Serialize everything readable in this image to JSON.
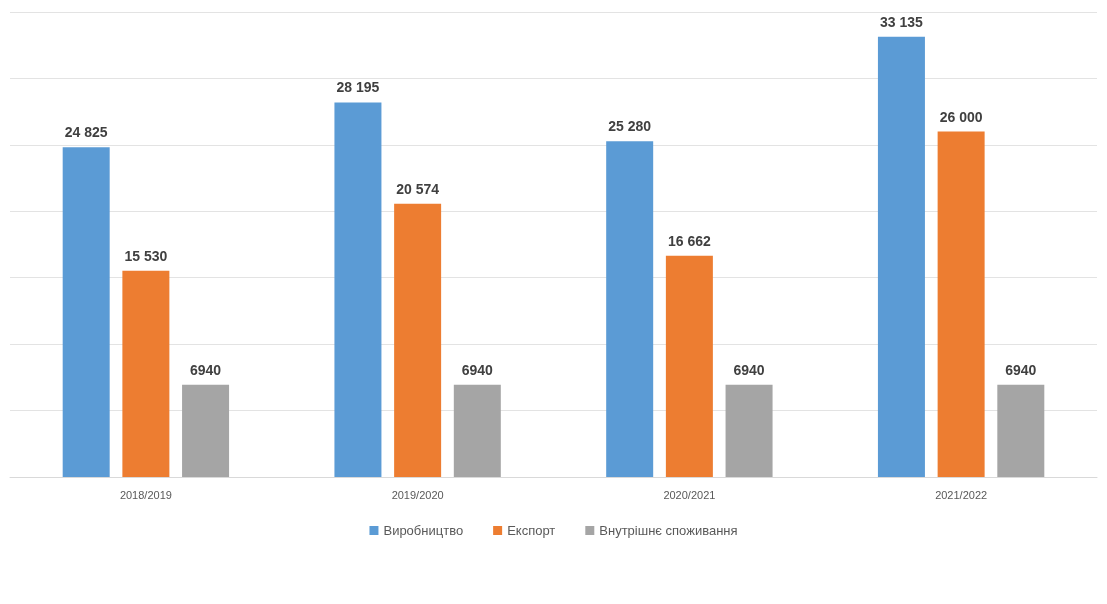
{
  "chart_data": {
    "type": "bar",
    "categories": [
      "2018/2019",
      "2019/2020",
      "2020/2021",
      "2021/2022"
    ],
    "series": [
      {
        "name": "Виробництво",
        "color": "#5b9bd5",
        "values": [
          24825,
          28195,
          25280,
          33135
        ],
        "value_labels": [
          "24 825",
          "28 195",
          "25 280",
          "33 135"
        ]
      },
      {
        "name": "Експорт",
        "color": "#ed7d31",
        "values": [
          15530,
          20574,
          16662,
          26000
        ],
        "value_labels": [
          "15 530",
          "20 574",
          "16 662",
          "26 000"
        ]
      },
      {
        "name": "Внутрішнє споживання",
        "color": "#a5a5a5",
        "values": [
          6940,
          6940,
          6940,
          6940
        ],
        "value_labels": [
          "6940",
          "6940",
          "6940",
          "6940"
        ]
      }
    ],
    "ylim": [
      0,
      35000
    ],
    "yticks": [
      {
        "value": 0,
        "label": null
      },
      {
        "value": 5000,
        "label": null
      },
      {
        "value": 10000,
        "label": null
      },
      {
        "value": 15000,
        "label": null
      },
      {
        "value": 20000,
        "label": null
      },
      {
        "value": 25000,
        "label": null
      },
      {
        "value": 30000,
        "label": null
      },
      {
        "value": 35000,
        "label": null
      }
    ],
    "grid": "y",
    "tick_labels": "x",
    "legend": "bottom"
  }
}
